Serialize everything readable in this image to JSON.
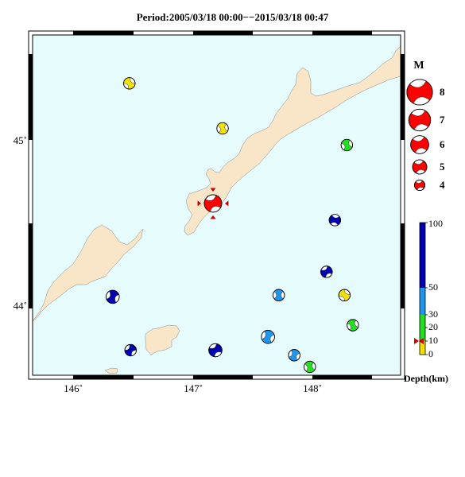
{
  "title": "Period:2005/03/18 00:00−−2015/03/18 00:47",
  "map": {
    "x_ticks": [
      "146˚",
      "147˚",
      "148˚"
    ],
    "y_ticks": [
      "45˚",
      "44˚"
    ],
    "colors": {
      "sea": "#e6fbfb",
      "land": "#f9e6c8",
      "frame": "#000000"
    }
  },
  "events": [
    {
      "lon": 146.47,
      "lat": 45.34,
      "mag": 4.6,
      "depth": 5,
      "color": "#f2e000",
      "rot": 0
    },
    {
      "lon": 147.25,
      "lat": 45.07,
      "mag": 4.6,
      "depth": 5,
      "color": "#f2e000",
      "rot": 30
    },
    {
      "lon": 148.29,
      "lat": 44.97,
      "mag": 4.6,
      "depth": 15,
      "color": "#22dd22",
      "rot": 20
    },
    {
      "lon": 147.17,
      "lat": 44.62,
      "mag": 6.0,
      "depth": 8,
      "color": "#ff0000",
      "rot": 110,
      "highlight": true
    },
    {
      "lon": 148.19,
      "lat": 44.52,
      "mag": 4.6,
      "depth": 70,
      "color": "#0000b0",
      "rot": 140
    },
    {
      "lon": 148.12,
      "lat": 44.21,
      "mag": 4.6,
      "depth": 70,
      "color": "#0000b0",
      "rot": 100
    },
    {
      "lon": 146.33,
      "lat": 44.06,
      "mag": 5.0,
      "depth": 70,
      "color": "#0000b0",
      "rot": 60
    },
    {
      "lon": 147.72,
      "lat": 44.07,
      "mag": 4.6,
      "depth": 40,
      "color": "#1e96ee",
      "rot": 40
    },
    {
      "lon": 148.27,
      "lat": 44.07,
      "mag": 4.6,
      "depth": 5,
      "color": "#f2e000",
      "rot": 170
    },
    {
      "lon": 148.34,
      "lat": 43.89,
      "mag": 4.6,
      "depth": 15,
      "color": "#22dd22",
      "rot": 20
    },
    {
      "lon": 147.63,
      "lat": 43.82,
      "mag": 5.0,
      "depth": 40,
      "color": "#1e96ee",
      "rot": 60
    },
    {
      "lon": 146.48,
      "lat": 43.74,
      "mag": 4.6,
      "depth": 70,
      "color": "#0000b0",
      "rot": 80
    },
    {
      "lon": 147.19,
      "lat": 43.74,
      "mag": 5.0,
      "depth": 70,
      "color": "#0000b0",
      "rot": 100
    },
    {
      "lon": 147.85,
      "lat": 43.71,
      "mag": 4.6,
      "depth": 40,
      "color": "#1e96ee",
      "rot": 60
    },
    {
      "lon": 147.98,
      "lat": 43.64,
      "mag": 4.6,
      "depth": 15,
      "color": "#22dd22",
      "rot": 30
    }
  ],
  "legend": {
    "mag_title": "M",
    "mags": [
      {
        "label": "8",
        "value": 8
      },
      {
        "label": "7",
        "value": 7
      },
      {
        "label": "6",
        "value": 6
      },
      {
        "label": "5",
        "value": 5
      },
      {
        "label": "4",
        "value": 4
      }
    ],
    "depth_title": "Depth(km)",
    "depth_ticks": [
      "100",
      "50",
      "30",
      "20",
      "10",
      "0"
    ],
    "depth_bands": [
      {
        "from": 0,
        "to": 10,
        "color": "#f2e000"
      },
      {
        "from": 10,
        "to": 20,
        "color": "#22dd22"
      },
      {
        "from": 20,
        "to": 30,
        "color": "#22dd22"
      },
      {
        "from": 30,
        "to": 50,
        "color": "#1e96ee"
      },
      {
        "from": 50,
        "to": 100,
        "color": "#0000b0"
      }
    ],
    "marker_depth": 10
  }
}
